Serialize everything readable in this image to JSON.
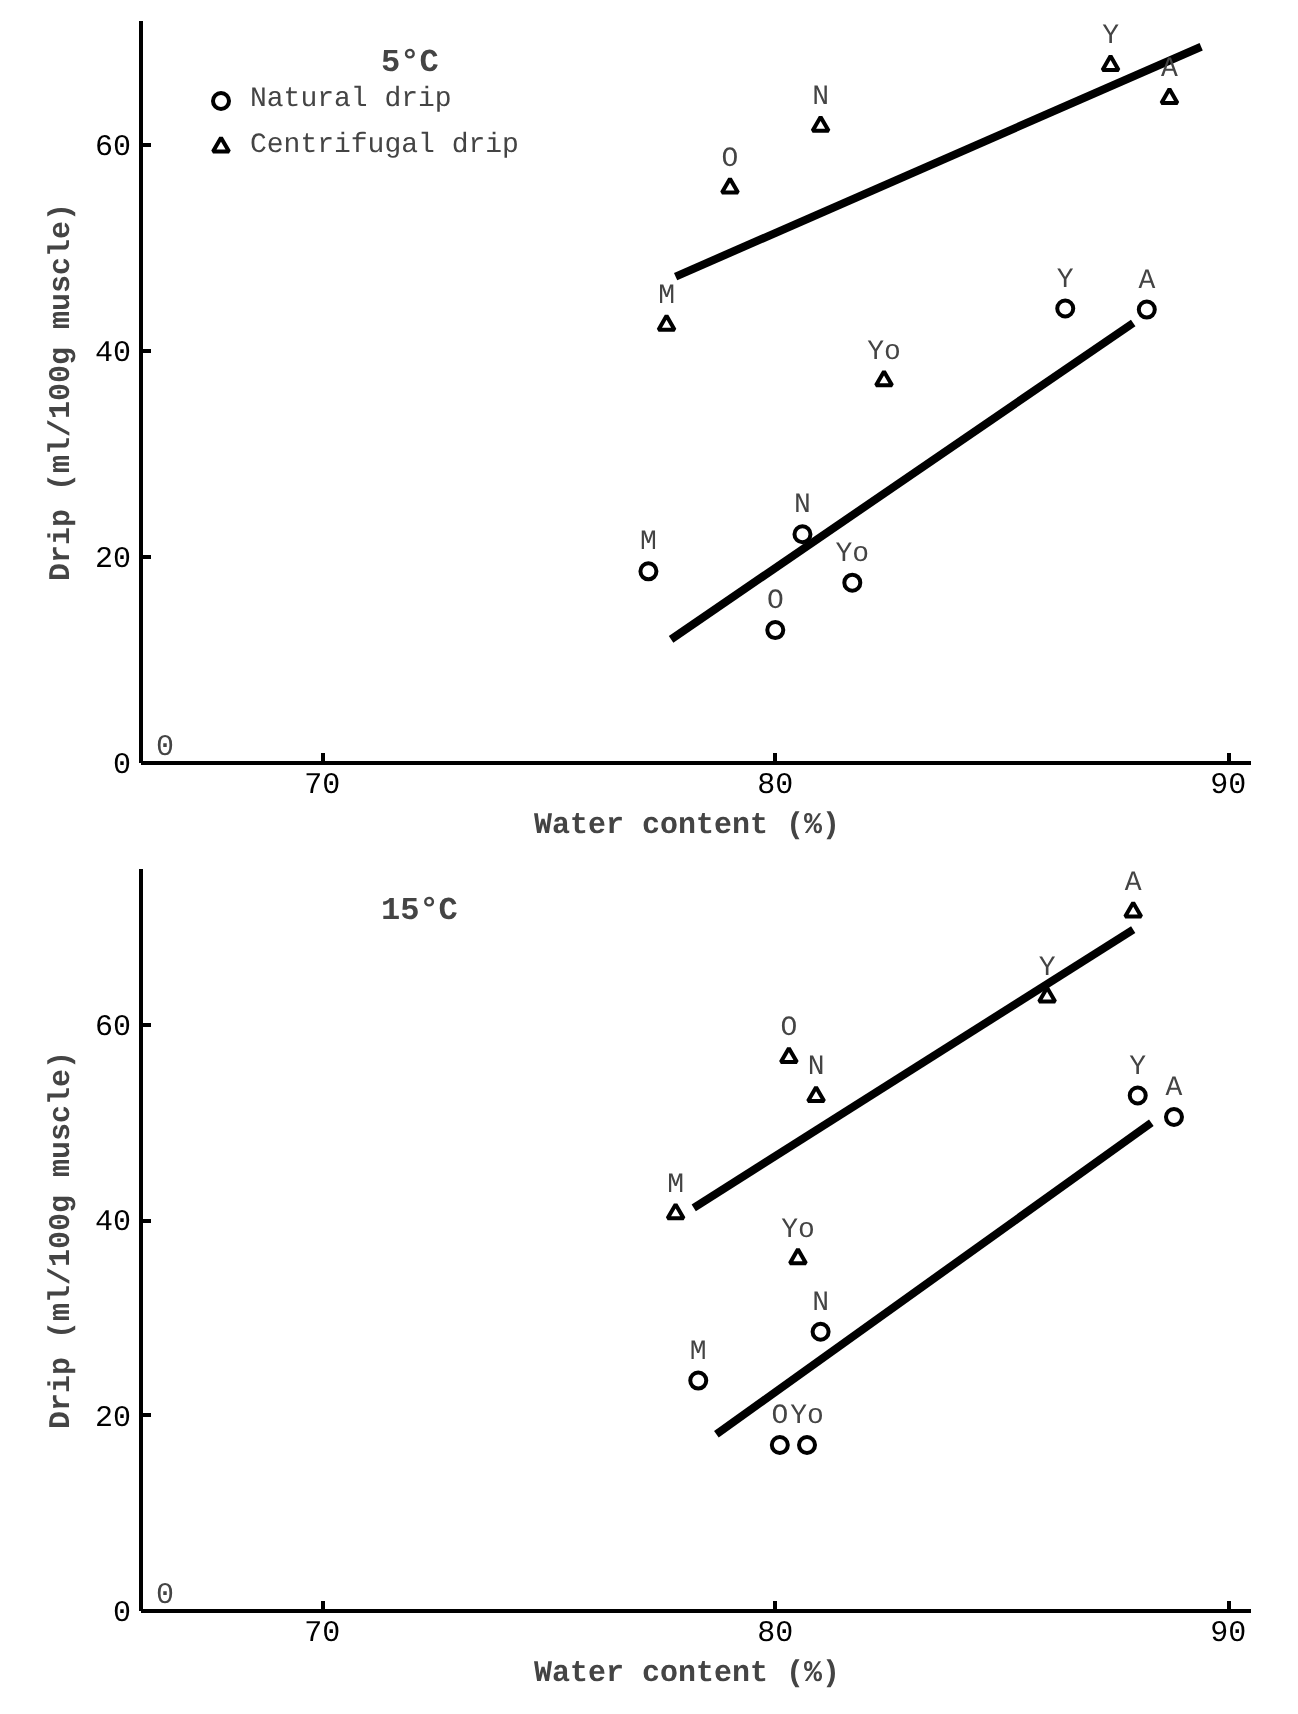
{
  "chart_data": [
    {
      "type": "scatter",
      "title": "5°C",
      "xlabel": "Water content  (%)",
      "ylabel": "Drip (ml/100g muscle)",
      "xlim": [
        66,
        90.5
      ],
      "ylim": [
        0,
        72
      ],
      "xticks": [
        70,
        80,
        90
      ],
      "yticks": [
        0,
        20,
        40,
        60
      ],
      "grid": false,
      "legend": "top left",
      "line_style": "solid",
      "series": [
        {
          "name": "Natural drip",
          "color": "#000000",
          "marker": "circle",
          "x": [
            77.2,
            80.0,
            80.6,
            81.7,
            86.4,
            88.2
          ],
          "values": [
            18.6,
            12.9,
            22.2,
            17.5,
            44.1,
            44.0
          ]
        },
        {
          "name": "Centrifugal drip",
          "color": "#000000",
          "marker": "triangle",
          "x": [
            77.6,
            79.0,
            81.0,
            82.4,
            87.4,
            88.7
          ],
          "values": [
            42.5,
            55.8,
            61.8,
            37.1,
            67.7,
            64.5
          ]
        },
        {
          "type": "line",
          "color": "#000000",
          "x": [
            77.7,
            87.9
          ],
          "values": [
            12.0,
            42.7
          ]
        },
        {
          "type": "line",
          "color": "#000000",
          "x": [
            77.8,
            89.4
          ],
          "values": [
            47.2,
            69.5
          ]
        }
      ],
      "annotations": [
        "0",
        {
          "text": "M",
          "x": 77.2,
          "y": 18.6
        },
        {
          "text": "O",
          "x": 80.0,
          "y": 12.9
        },
        {
          "text": "N",
          "x": 80.6,
          "y": 22.2
        },
        {
          "text": "Yo",
          "x": 81.7,
          "y": 17.5
        },
        {
          "text": "Y",
          "x": 86.4,
          "y": 44.1
        },
        {
          "text": "A",
          "x": 88.2,
          "y": 44.0
        },
        {
          "text": "M",
          "x": 77.6,
          "y": 42.5
        },
        {
          "text": "O",
          "x": 79.0,
          "y": 55.8
        },
        {
          "text": "N",
          "x": 81.0,
          "y": 61.8
        },
        {
          "text": "Yo",
          "x": 82.4,
          "y": 37.1
        },
        {
          "text": "Y",
          "x": 87.4,
          "y": 67.7
        },
        {
          "text": "A",
          "x": 88.7,
          "y": 64.5
        }
      ]
    },
    {
      "type": "scatter",
      "title": "15°C",
      "xlabel": "Water content  (%)",
      "ylabel": "Drip (ml/100g muscle)",
      "xlim": [
        66,
        90.5
      ],
      "ylim": [
        0,
        76
      ],
      "xticks": [
        70,
        80,
        90
      ],
      "yticks": [
        0,
        20,
        40,
        60
      ],
      "grid": false,
      "line_style": "solid",
      "series": [
        {
          "color": "#000000",
          "marker": "circle",
          "x": [
            78.3,
            80.1,
            81.0,
            80.7,
            88.0,
            88.8
          ],
          "values": [
            23.6,
            17.0,
            28.6,
            17.0,
            52.8,
            50.6
          ]
        },
        {
          "color": "#000000",
          "marker": "triangle",
          "x": [
            77.8,
            80.3,
            80.9,
            80.5,
            86.0,
            87.9
          ],
          "values": [
            40.7,
            56.7,
            52.7,
            36.1,
            62.9,
            71.6
          ]
        },
        {
          "type": "line",
          "color": "#000000",
          "x": [
            78.7,
            88.3
          ],
          "values": [
            18.1,
            50.0
          ]
        },
        {
          "type": "line",
          "color": "#000000",
          "x": [
            78.2,
            87.9
          ],
          "values": [
            41.3,
            69.8
          ]
        }
      ],
      "annotations": [
        "0",
        {
          "text": "M",
          "x": 78.3,
          "y": 23.6
        },
        {
          "text": "O",
          "x": 80.1,
          "y": 17.0
        },
        {
          "text": "N",
          "x": 81.0,
          "y": 28.6
        },
        {
          "text": "Yo",
          "x": 80.7,
          "y": 17.0
        },
        {
          "text": "Y",
          "x": 88.0,
          "y": 52.8
        },
        {
          "text": "A",
          "x": 88.8,
          "y": 50.6
        },
        {
          "text": "M",
          "x": 77.8,
          "y": 40.7
        },
        {
          "text": "O",
          "x": 80.3,
          "y": 56.7
        },
        {
          "text": "N",
          "x": 80.9,
          "y": 52.7
        },
        {
          "text": "Yo",
          "x": 80.5,
          "y": 36.1
        },
        {
          "text": "Y",
          "x": 86.0,
          "y": 62.9
        },
        {
          "text": "A",
          "x": 87.9,
          "y": 71.6
        }
      ]
    }
  ]
}
